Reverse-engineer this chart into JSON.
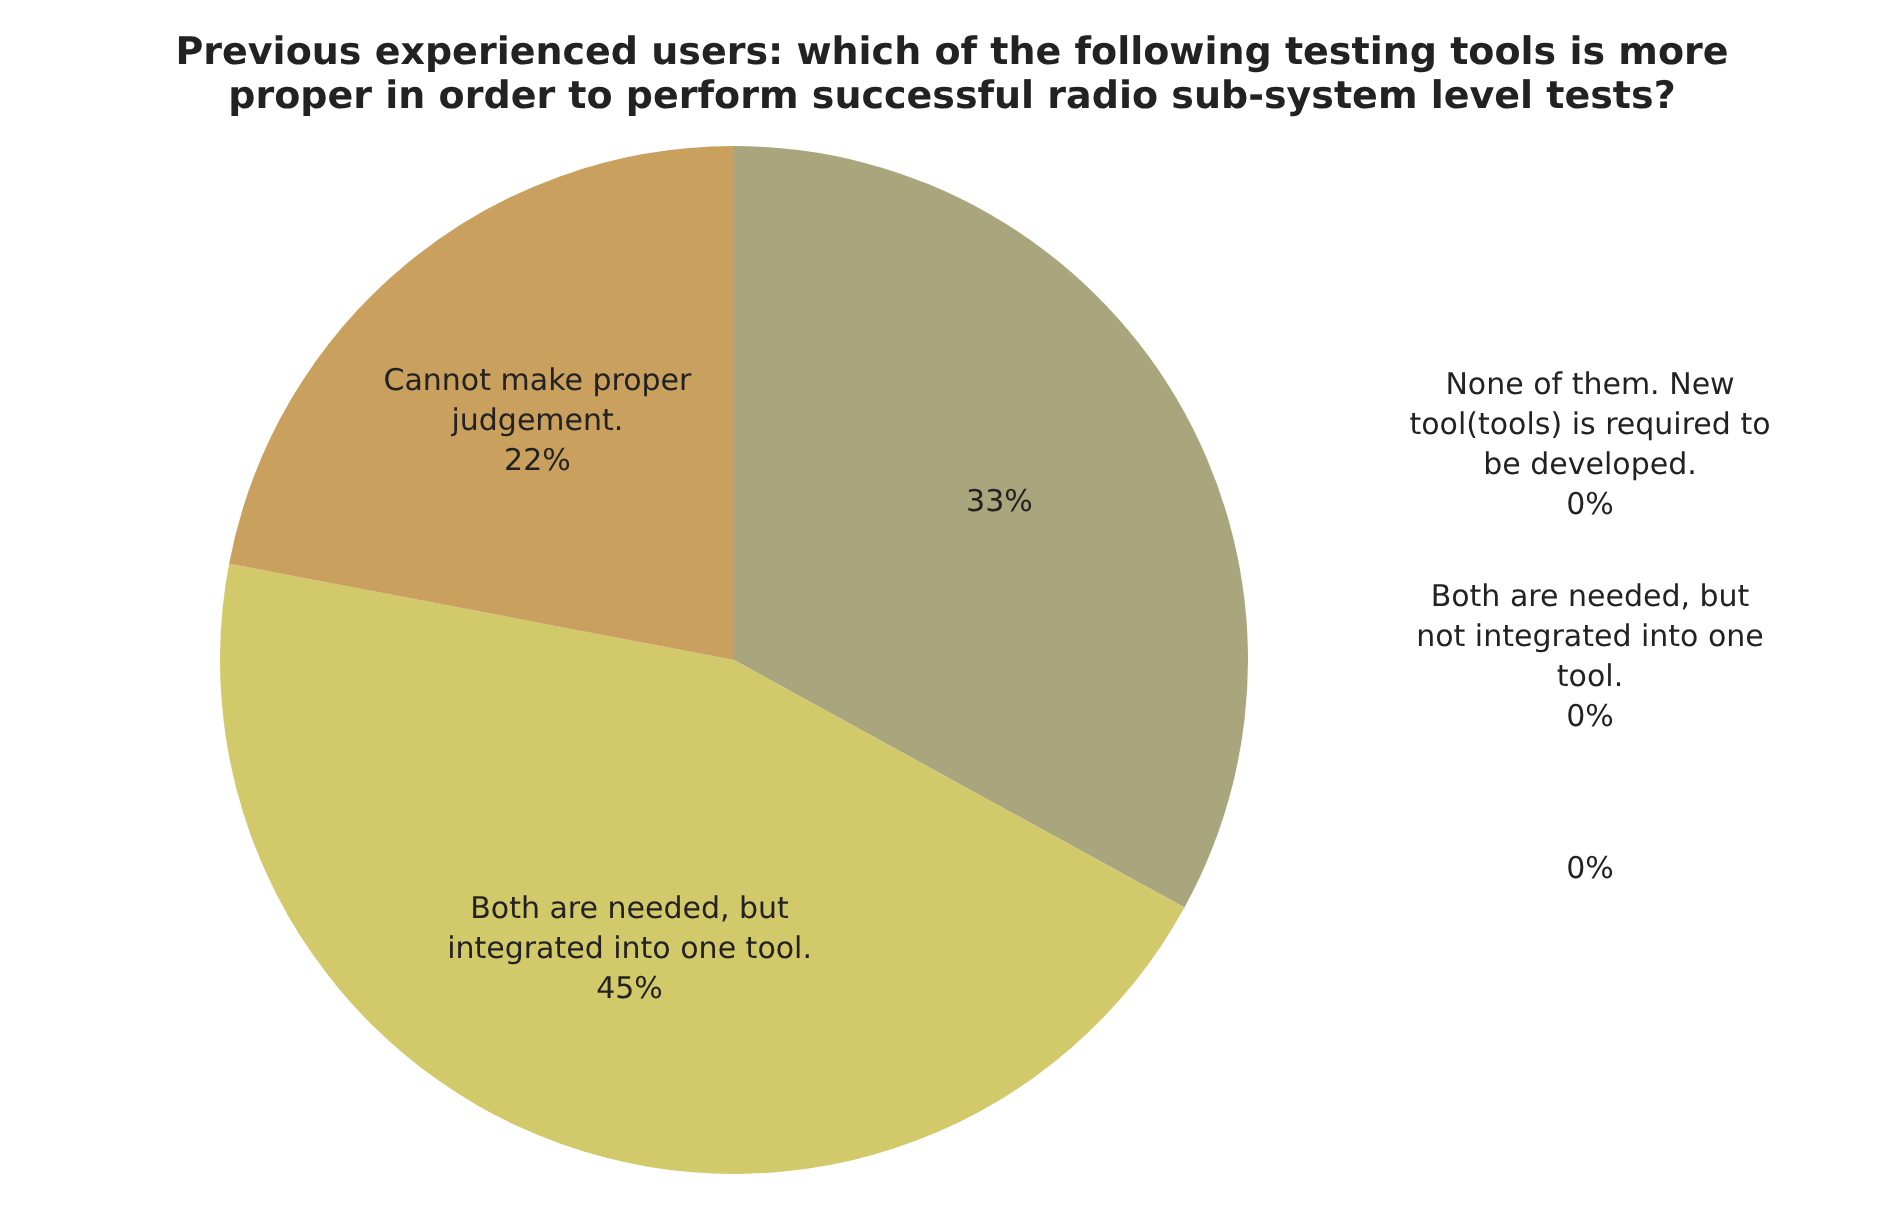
{
  "chart_data": {
    "type": "pie",
    "title": "Previous experienced users:  which of the following testing tools is more proper in order to perform successful radio sub-system level tests?",
    "categories": [
      null,
      "Both are needed, but integrated into one tool.",
      "Cannot make proper judgement.",
      "None of them. New tool(tools) is required to be developed.",
      "Both are needed, but not integrated into one tool.",
      null
    ],
    "values": [
      33,
      45,
      22,
      0,
      0,
      0
    ],
    "value_labels": [
      "33%",
      "45%",
      "22%",
      "0%",
      "0%",
      "0%"
    ],
    "colors": [
      "#a9a57c",
      "#d2c96a",
      "#c9a05e",
      "#9c8b5e",
      "#b7b07a",
      "#8a7f4e"
    ],
    "legend": false
  }
}
